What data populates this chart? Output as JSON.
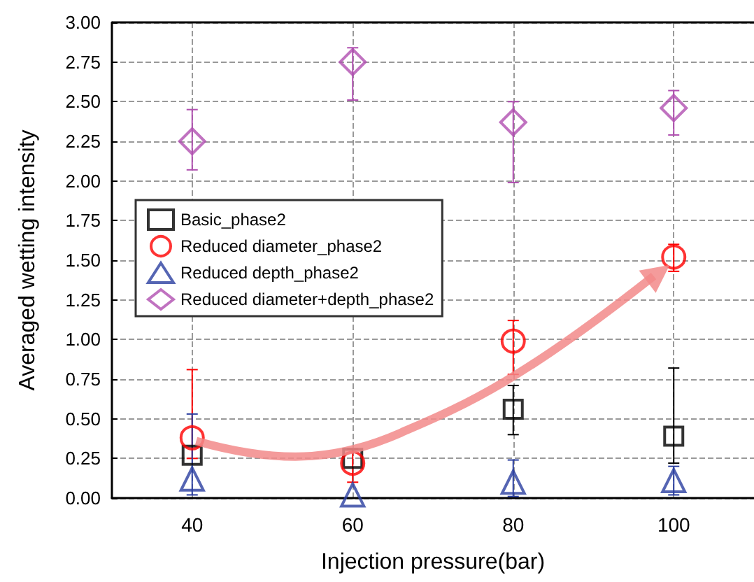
{
  "chart_data": {
    "type": "scatter",
    "xlabel": "Injection pressure(bar)",
    "ylabel": "Averaged wetting intensity",
    "x": [
      40,
      60,
      80,
      100
    ],
    "xlim": [
      30,
      110
    ],
    "xticks": [
      40,
      60,
      80,
      100
    ],
    "ylim": [
      0,
      3
    ],
    "yticks": [
      {
        "value": 0,
        "label": "0.00"
      },
      {
        "value": 0.25,
        "label": "0.25"
      },
      {
        "value": 0.5,
        "label": "0.50"
      },
      {
        "value": 0.75,
        "label": "0.75"
      },
      {
        "value": 1,
        "label": "1.00"
      },
      {
        "value": 1.25,
        "label": "1.25"
      },
      {
        "value": 1.5,
        "label": "1.50"
      },
      {
        "value": 1.75,
        "label": "1.75"
      },
      {
        "value": 2,
        "label": "2.00"
      },
      {
        "value": 2.25,
        "label": "2.25"
      },
      {
        "value": 2.5,
        "label": "2.50"
      },
      {
        "value": 2.75,
        "label": "2.75"
      },
      {
        "value": 3,
        "label": "3.00"
      }
    ],
    "grid": true,
    "legend": "left",
    "series": [
      {
        "name": "Basic_phase2",
        "color": "#000000",
        "marker": "square",
        "values": [
          0.27,
          0.25,
          0.56,
          0.39
        ],
        "errors": [
          null,
          null,
          [
            0.4,
            0.71
          ],
          [
            0.22,
            0.82
          ]
        ]
      },
      {
        "name": "Reduced diameter_phase2",
        "color": "#ff0000",
        "marker": "circle",
        "values": [
          0.38,
          0.22,
          0.99,
          1.52
        ],
        "errors": [
          [
            0.25,
            0.81
          ],
          [
            0.1,
            0.31
          ],
          [
            0.78,
            1.12
          ],
          [
            1.43,
            1.6
          ]
        ]
      },
      {
        "name": "Reduced depth_phase2",
        "color": "#2b3fa0",
        "marker": "triangle",
        "values": [
          0.12,
          0.02,
          0.1,
          0.11
        ],
        "errors": [
          [
            0.02,
            0.53
          ],
          null,
          [
            0.01,
            0.24
          ],
          [
            0.02,
            0.2
          ]
        ]
      },
      {
        "name": "Reduced diameter+depth_phase2",
        "color": "#b04fb0",
        "marker": "diamond",
        "values": [
          2.25,
          2.75,
          2.37,
          2.46
        ],
        "errors": [
          [
            2.07,
            2.45
          ],
          [
            2.51,
            2.84
          ],
          [
            1.99,
            2.5
          ],
          [
            2.29,
            2.57
          ]
        ]
      }
    ]
  }
}
